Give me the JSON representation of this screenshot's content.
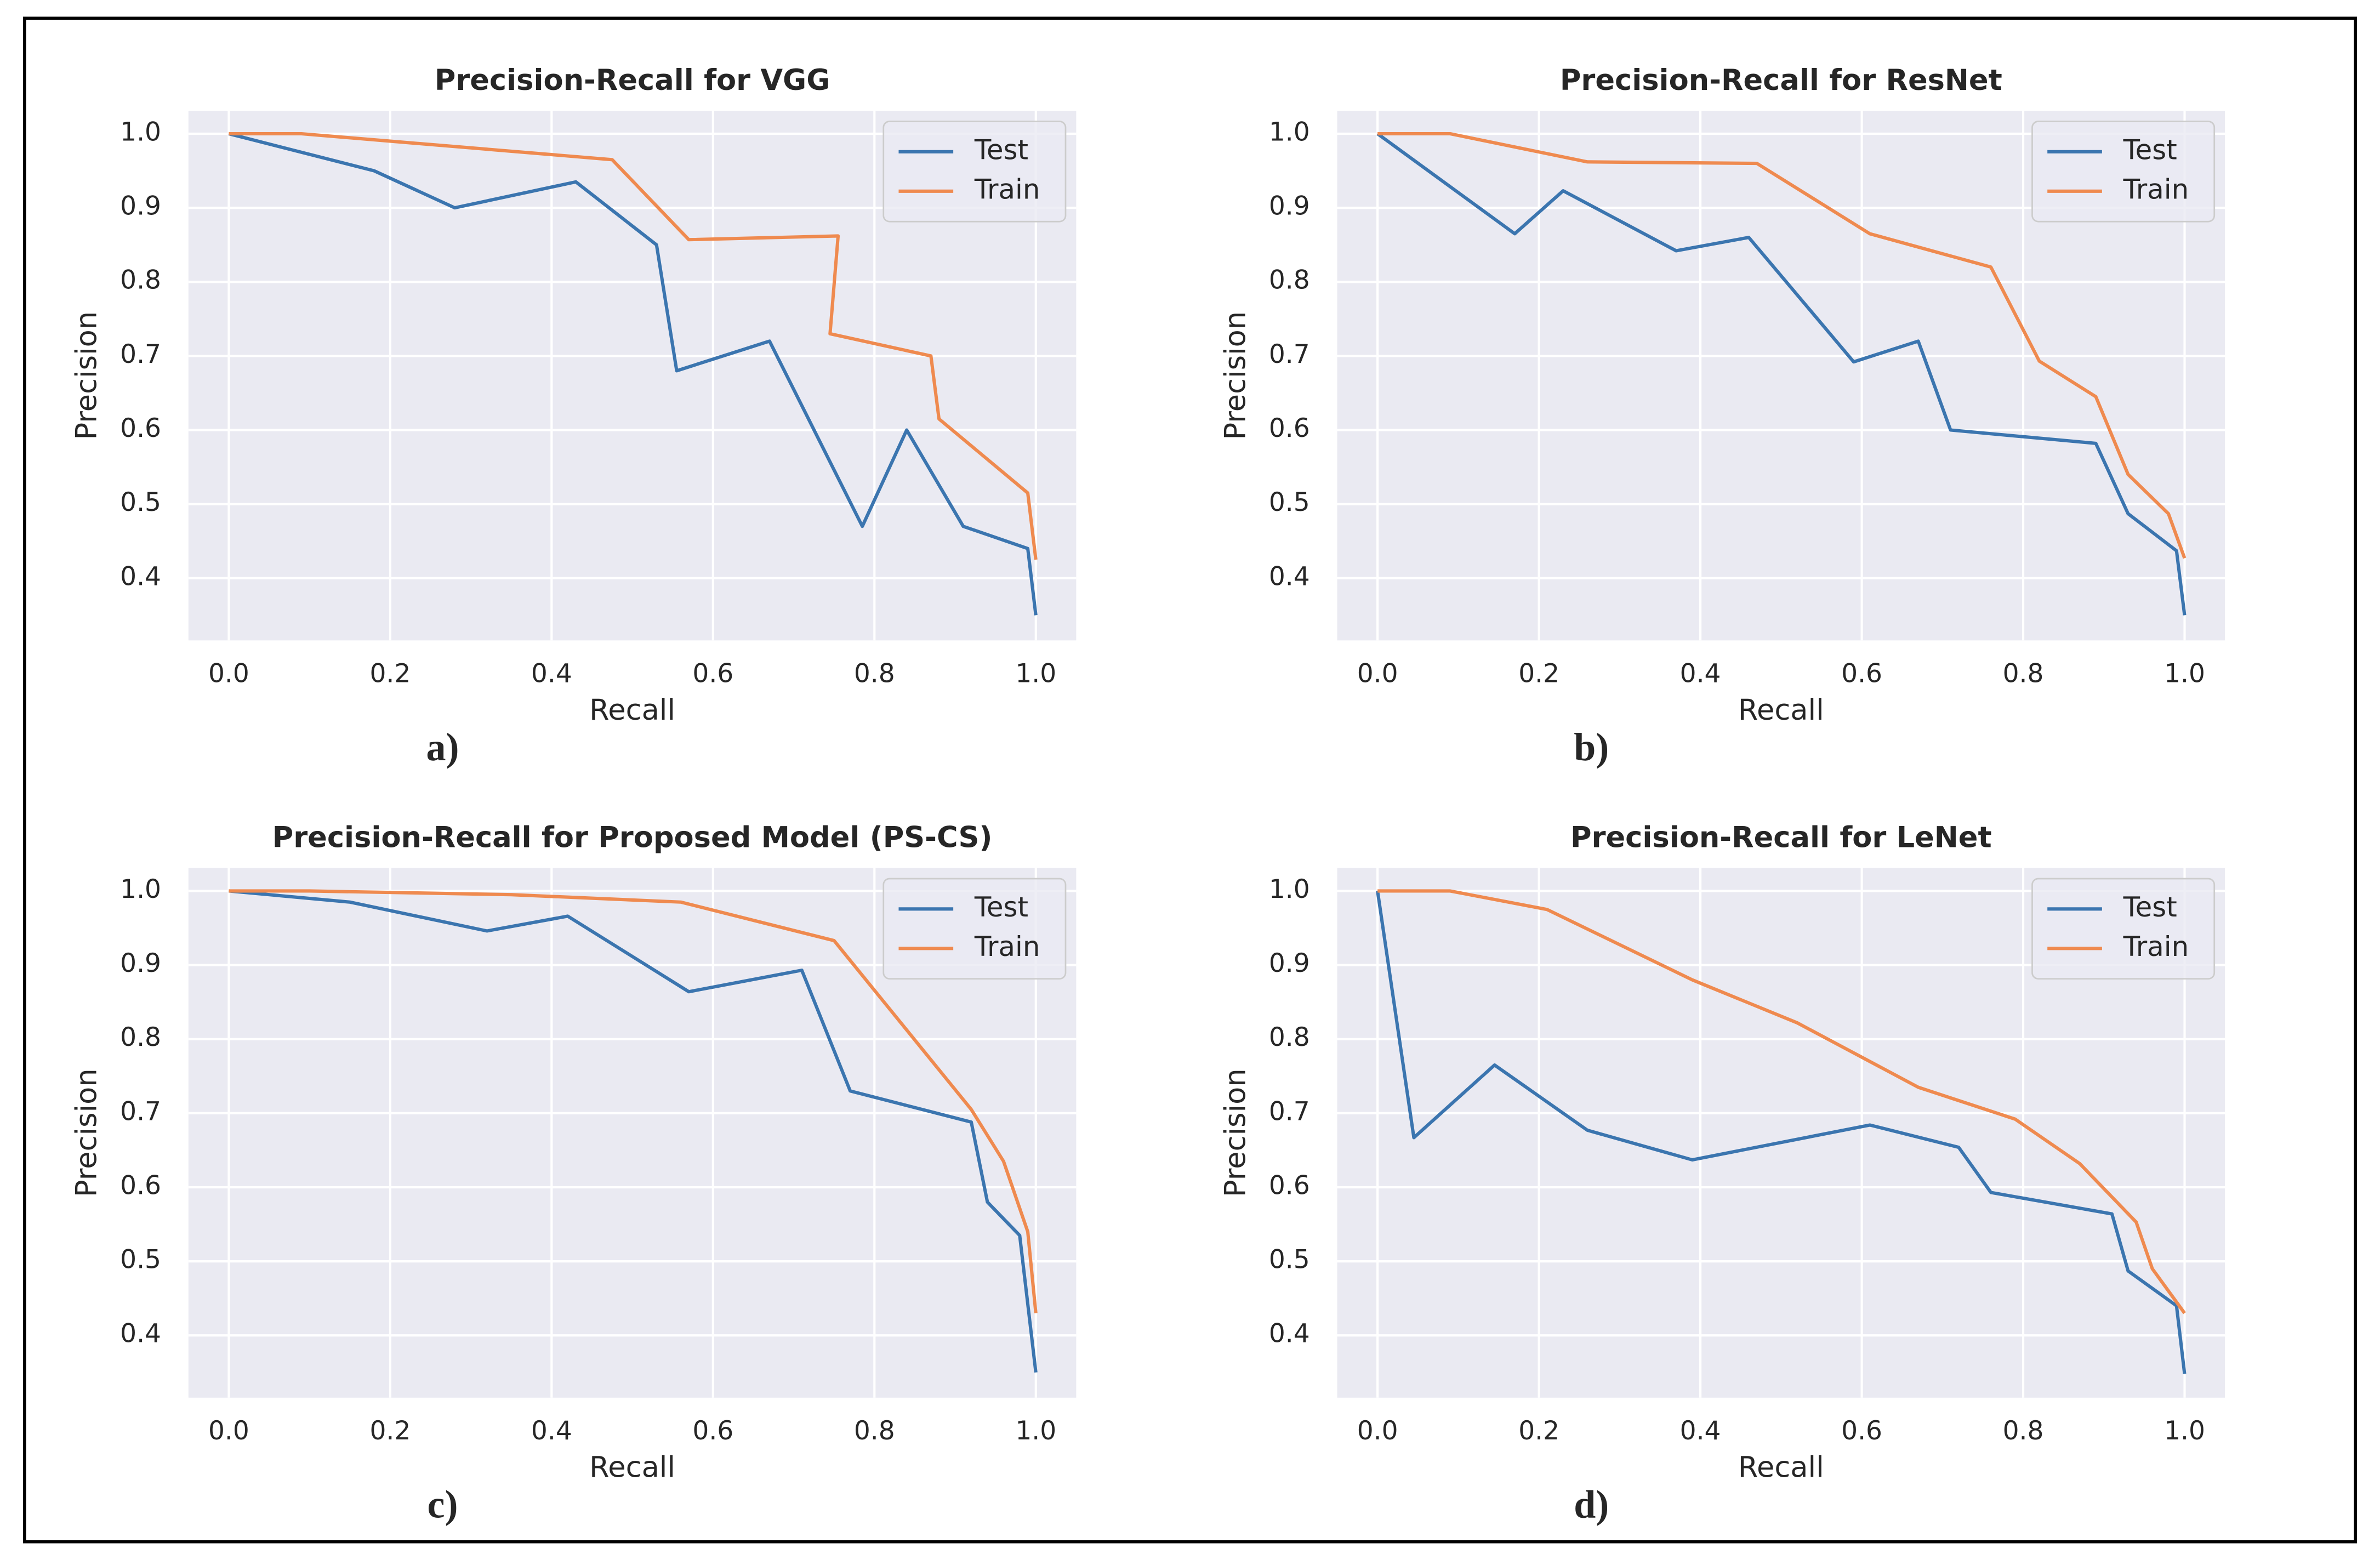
{
  "chart_data": [
    {
      "type": "line",
      "title": "Precision-Recall for VGG",
      "xlabel": "Recall",
      "ylabel": "Precision",
      "caption": "a)",
      "xlim": [
        -0.05,
        1.05
      ],
      "ylim": [
        0.316,
        1.031
      ],
      "xticks": [
        {
          "value": 0,
          "label": "0.0"
        },
        0.2,
        0.4,
        0.6,
        0.8,
        {
          "value": 1,
          "label": "1.0"
        }
      ],
      "yticks": [
        0.4,
        0.5,
        0.6,
        0.7,
        0.8,
        0.9,
        {
          "value": 1,
          "label": "1.0"
        }
      ],
      "grid": true,
      "legend": "upper right",
      "series": [
        {
          "name": "Test",
          "color": "#3b75af",
          "x": [
            0,
            0.18,
            0.28,
            0.43,
            0.53,
            0.555,
            0.67,
            0.785,
            0.84,
            0.91,
            0.99,
            1.0
          ],
          "values": [
            1.0,
            0.95,
            0.9,
            0.935,
            0.85,
            0.68,
            0.72,
            0.47,
            0.6,
            0.47,
            0.44,
            0.35
          ]
        },
        {
          "name": "Train",
          "color": "#ef8a4f",
          "x": [
            0,
            0.09,
            0.475,
            0.57,
            0.755,
            0.745,
            0.87,
            0.88,
            0.99,
            1.0
          ],
          "values": [
            1.0,
            1.0,
            0.965,
            0.857,
            0.862,
            0.73,
            0.7,
            0.615,
            0.515,
            0.425
          ]
        }
      ]
    },
    {
      "type": "line",
      "title": "Precision-Recall for ResNet",
      "xlabel": "Recall",
      "ylabel": "Precision",
      "caption": "b)",
      "xlim": [
        -0.05,
        1.05
      ],
      "ylim": [
        0.316,
        1.031
      ],
      "xticks": [
        {
          "value": 0,
          "label": "0.0"
        },
        0.2,
        0.4,
        0.6,
        0.8,
        {
          "value": 1,
          "label": "1.0"
        }
      ],
      "yticks": [
        0.4,
        0.5,
        0.6,
        0.7,
        0.8,
        0.9,
        {
          "value": 1,
          "label": "1.0"
        }
      ],
      "grid": true,
      "legend": "upper right",
      "series": [
        {
          "name": "Test",
          "color": "#3b75af",
          "x": [
            0,
            0.17,
            0.23,
            0.37,
            0.46,
            0.59,
            0.67,
            0.71,
            0.89,
            0.93,
            0.99,
            1.0
          ],
          "values": [
            1.0,
            0.865,
            0.923,
            0.842,
            0.86,
            0.692,
            0.72,
            0.6,
            0.582,
            0.487,
            0.437,
            0.35
          ]
        },
        {
          "name": "Train",
          "color": "#ef8a4f",
          "x": [
            0,
            0.09,
            0.26,
            0.47,
            0.61,
            0.76,
            0.82,
            0.89,
            0.93,
            0.98,
            1.0
          ],
          "values": [
            1.0,
            1.0,
            0.962,
            0.96,
            0.865,
            0.82,
            0.693,
            0.645,
            0.54,
            0.487,
            0.427
          ]
        }
      ]
    },
    {
      "type": "line",
      "title": "Precision-Recall for Proposed Model (PS-CS)",
      "xlabel": "Recall",
      "ylabel": "Precision",
      "caption": "c)",
      "xlim": [
        -0.05,
        1.05
      ],
      "ylim": [
        0.316,
        1.031
      ],
      "xticks": [
        {
          "value": 0,
          "label": "0.0"
        },
        0.2,
        0.4,
        0.6,
        0.8,
        {
          "value": 1,
          "label": "1.0"
        }
      ],
      "yticks": [
        0.4,
        0.5,
        0.6,
        0.7,
        0.8,
        0.9,
        {
          "value": 1,
          "label": "1.0"
        }
      ],
      "grid": true,
      "legend": "upper right",
      "series": [
        {
          "name": "Test",
          "color": "#3b75af",
          "x": [
            0,
            0.15,
            0.32,
            0.42,
            0.57,
            0.71,
            0.77,
            0.92,
            0.94,
            0.98,
            1.0
          ],
          "values": [
            1.0,
            0.985,
            0.946,
            0.966,
            0.864,
            0.893,
            0.73,
            0.688,
            0.58,
            0.535,
            0.35
          ]
        },
        {
          "name": "Train",
          "color": "#ef8a4f",
          "x": [
            0,
            0.1,
            0.35,
            0.56,
            0.75,
            0.92,
            0.96,
            0.99,
            1.0
          ],
          "values": [
            1.0,
            1.0,
            0.995,
            0.985,
            0.933,
            0.705,
            0.635,
            0.54,
            0.43
          ]
        }
      ]
    },
    {
      "type": "line",
      "title": "Precision-Recall for LeNet",
      "xlabel": "Recall",
      "ylabel": "Precision",
      "caption": "d)",
      "xlim": [
        -0.05,
        1.05
      ],
      "ylim": [
        0.316,
        1.031
      ],
      "xticks": [
        {
          "value": 0,
          "label": "0.0"
        },
        0.2,
        0.4,
        0.6,
        0.8,
        {
          "value": 1,
          "label": "1.0"
        }
      ],
      "yticks": [
        0.4,
        0.5,
        0.6,
        0.7,
        0.8,
        0.9,
        {
          "value": 1,
          "label": "1.0"
        }
      ],
      "grid": true,
      "legend": "upper right",
      "series": [
        {
          "name": "Test",
          "color": "#3b75af",
          "x": [
            0,
            0.045,
            0.145,
            0.26,
            0.39,
            0.61,
            0.72,
            0.76,
            0.91,
            0.93,
            0.99,
            1.0
          ],
          "values": [
            1.0,
            0.667,
            0.765,
            0.677,
            0.637,
            0.684,
            0.654,
            0.593,
            0.564,
            0.487,
            0.44,
            0.348
          ]
        },
        {
          "name": "Train",
          "color": "#ef8a4f",
          "x": [
            0,
            0.09,
            0.21,
            0.39,
            0.52,
            0.67,
            0.79,
            0.87,
            0.94,
            0.96,
            1.0
          ],
          "values": [
            1.0,
            1.0,
            0.975,
            0.88,
            0.822,
            0.735,
            0.692,
            0.632,
            0.553,
            0.49,
            0.43
          ]
        }
      ]
    }
  ]
}
